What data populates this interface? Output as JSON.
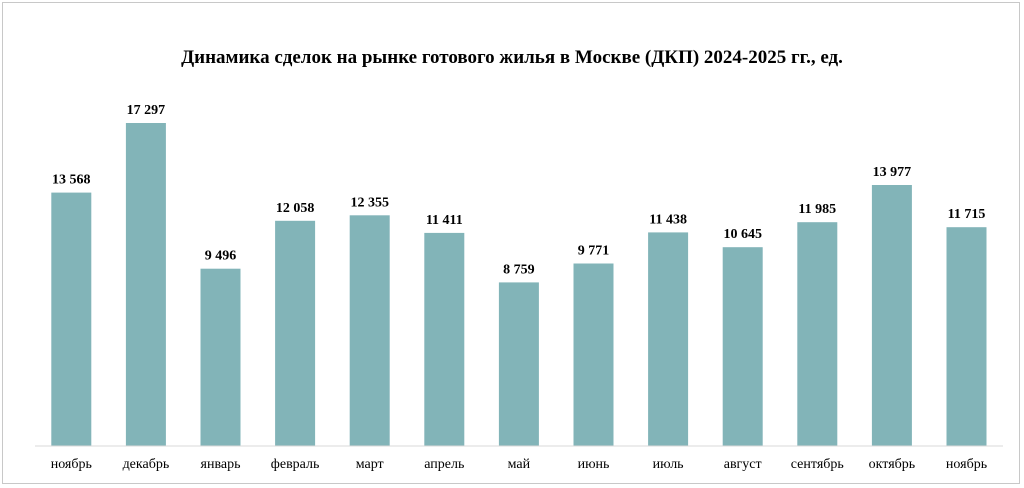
{
  "chart_data": {
    "type": "bar",
    "title": "Динамика сделок на рынке готового жилья в Москве (ДКП) 2024-2025 гг., ед.",
    "categories": [
      "ноябрь",
      "декабрь",
      "январь",
      "февраль",
      "март",
      "апрель",
      "май",
      "июнь",
      "июль",
      "август",
      "сентябрь",
      "октябрь",
      "ноябрь"
    ],
    "values": [
      13568,
      17297,
      9496,
      12058,
      12355,
      11411,
      8759,
      9771,
      11438,
      10645,
      11985,
      13977,
      11715
    ],
    "value_labels": [
      "13 568",
      "17 297",
      "9 496",
      "12 058",
      "12 355",
      "11 411",
      "8 759",
      "9 771",
      "11 438",
      "10 645",
      "11 985",
      "13 977",
      "11 715"
    ],
    "xlabel": "",
    "ylabel": "",
    "ylim": [
      0,
      18000
    ],
    "grid": false,
    "legend": "none",
    "bar_color": "#82b4b8",
    "axis_color": "#d9d9d9"
  }
}
